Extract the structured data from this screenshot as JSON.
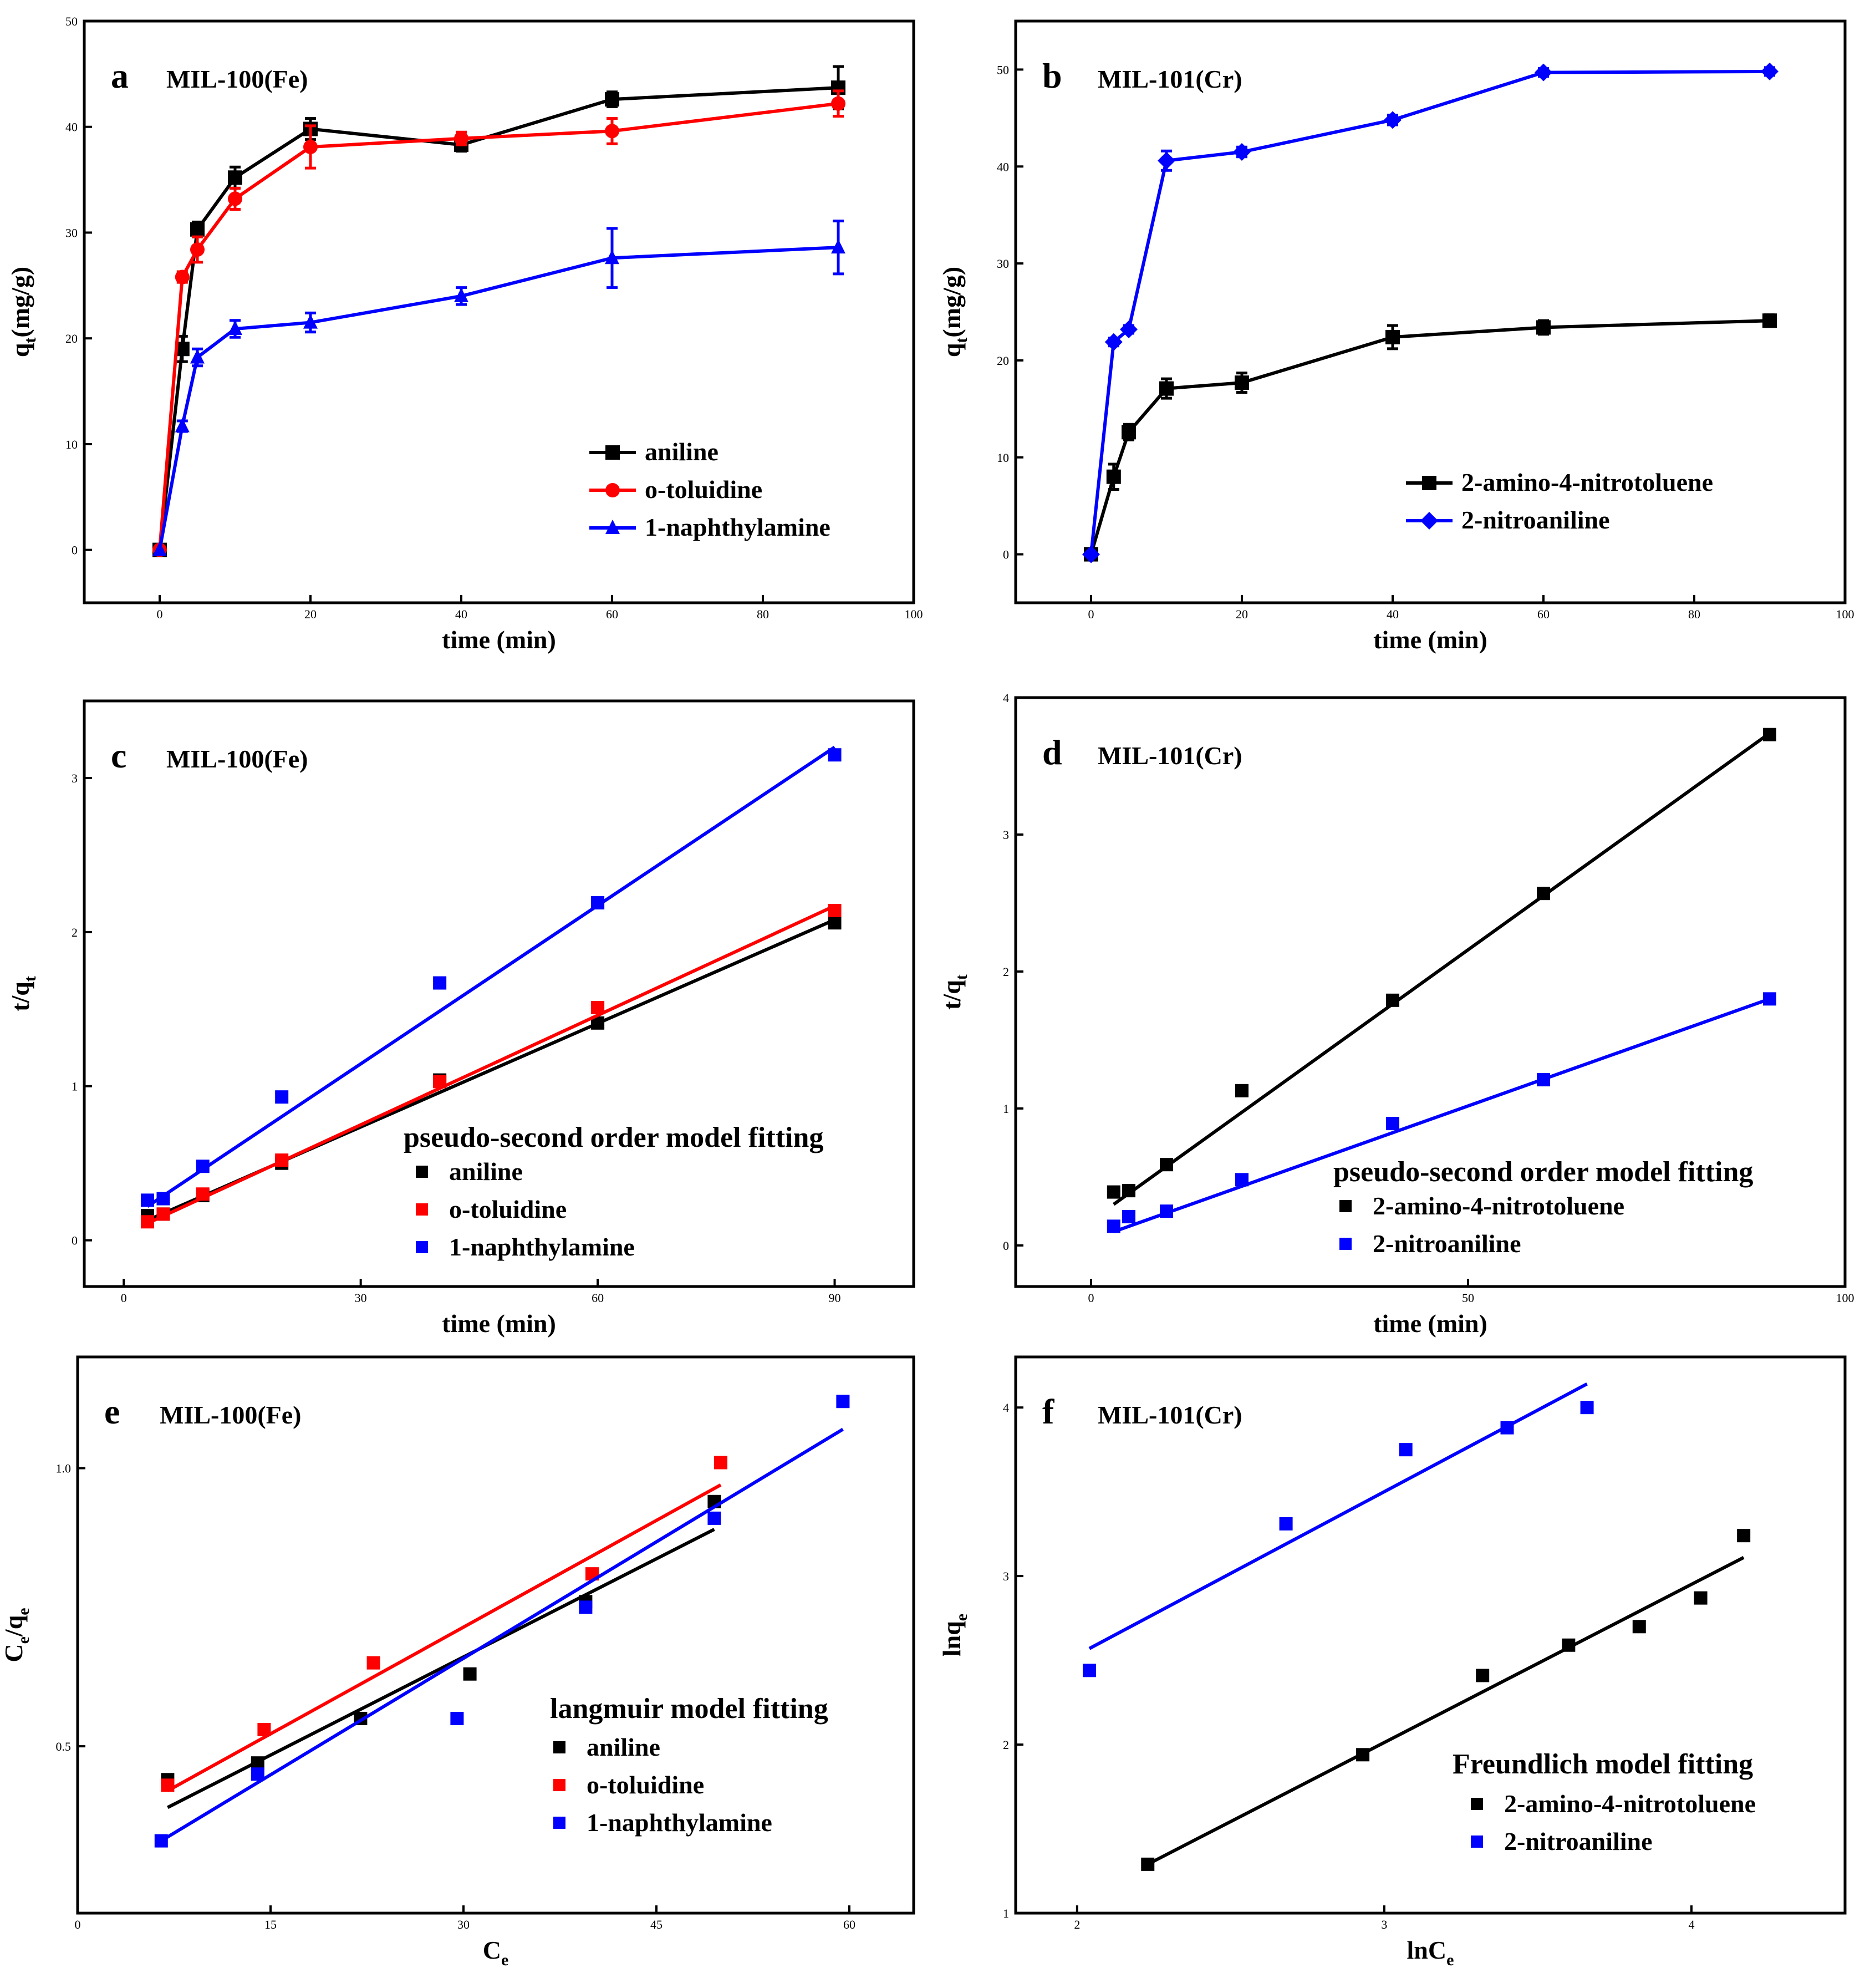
{
  "colors": {
    "black": "#000000",
    "red": "#ff0000",
    "blue": "#0000ff"
  },
  "chart_data": [
    {
      "id": "a",
      "type": "line",
      "panel_label": "a",
      "title": "MIL-100(Fe)",
      "xlabel": "time (min)",
      "ylabel_main": "q",
      "ylabel_sub": "t",
      "ylabel_rest": "(mg/g)",
      "xlim": [
        -10,
        100
      ],
      "ylim": [
        -5,
        50
      ],
      "xticks": [
        0,
        20,
        40,
        60,
        80,
        100
      ],
      "yticks": [
        0,
        10,
        20,
        30,
        40,
        50
      ],
      "legend_title": "",
      "series": [
        {
          "name": "aniline",
          "color": "#000000",
          "marker": "square",
          "x": [
            0,
            3,
            5,
            10,
            20,
            40,
            60,
            90
          ],
          "y": [
            0,
            19,
            30.3,
            35.2,
            39.8,
            38.3,
            42.6,
            43.7
          ],
          "err": [
            0,
            1.2,
            0.7,
            1.0,
            1.0,
            0.6,
            0.7,
            2.0
          ]
        },
        {
          "name": "o-toluidine",
          "color": "#ff0000",
          "marker": "circle",
          "x": [
            0,
            3,
            5,
            10,
            20,
            40,
            60,
            90
          ],
          "y": [
            0,
            25.8,
            28.4,
            33.2,
            38.1,
            38.9,
            39.6,
            42.2
          ],
          "err": [
            0,
            0.5,
            1.2,
            1.0,
            2.0,
            0.6,
            1.2,
            1.2
          ]
        },
        {
          "name": "1-naphthylamine",
          "color": "#0000ff",
          "marker": "triangle",
          "x": [
            0,
            3,
            5,
            10,
            20,
            40,
            60,
            90
          ],
          "y": [
            0,
            11.7,
            18.2,
            20.9,
            21.5,
            24.0,
            27.6,
            28.6
          ],
          "err": [
            0,
            0.5,
            0.8,
            0.8,
            0.9,
            0.8,
            2.8,
            2.5
          ]
        }
      ]
    },
    {
      "id": "b",
      "type": "line",
      "panel_label": "b",
      "title": "MIL-101(Cr)",
      "xlabel": "time (min)",
      "ylabel_main": "q",
      "ylabel_sub": "t",
      "ylabel_rest": "(mg/g)",
      "xlim": [
        -10,
        100
      ],
      "ylim": [
        -5,
        55
      ],
      "xticks": [
        0,
        20,
        40,
        60,
        80,
        100
      ],
      "yticks": [
        0,
        10,
        20,
        30,
        40,
        50
      ],
      "legend_title": "",
      "series": [
        {
          "name": "2-amino-4-nitrotoluene",
          "color": "#000000",
          "marker": "square",
          "x": [
            0,
            3,
            5,
            10,
            20,
            40,
            60,
            90
          ],
          "y": [
            0,
            8,
            12.6,
            17.1,
            17.7,
            22.4,
            23.4,
            24.1
          ],
          "err": [
            0,
            1.3,
            0.8,
            1.0,
            1.0,
            1.2,
            0.7,
            0.6
          ]
        },
        {
          "name": "2-nitroaniline",
          "color": "#0000ff",
          "marker": "diamond",
          "x": [
            0,
            3,
            5,
            10,
            20,
            40,
            60,
            90
          ],
          "y": [
            0,
            21.9,
            23.2,
            40.6,
            41.5,
            44.8,
            49.7,
            49.8
          ],
          "err": [
            0,
            0.4,
            0.4,
            1.0,
            0.5,
            0.5,
            0.4,
            0.4
          ]
        }
      ]
    },
    {
      "id": "c",
      "type": "scatter",
      "panel_label": "c",
      "title": "MIL-100(Fe)",
      "xlabel": "time (min)",
      "ylabel_main": "t/q",
      "ylabel_sub": "t",
      "ylabel_rest": "",
      "xlim": [
        -5,
        100
      ],
      "ylim": [
        -0.3,
        3.5
      ],
      "xticks": [
        0,
        30,
        60,
        90
      ],
      "yticks": [
        0,
        1,
        2,
        3
      ],
      "legend_title": "pseudo-second order model fitting",
      "series": [
        {
          "name": "aniline",
          "color": "#000000",
          "x": [
            3,
            5,
            10,
            20,
            40,
            60,
            90
          ],
          "y": [
            0.16,
            0.17,
            0.29,
            0.5,
            1.04,
            1.41,
            2.06
          ],
          "fit": [
            [
              3,
              0.13
            ],
            [
              90,
              2.08
            ]
          ]
        },
        {
          "name": "o-toluidine",
          "color": "#ff0000",
          "x": [
            3,
            5,
            10,
            20,
            40,
            60,
            90
          ],
          "y": [
            0.12,
            0.17,
            0.3,
            0.52,
            1.03,
            1.51,
            2.14
          ],
          "fit": [
            [
              3,
              0.11
            ],
            [
              90,
              2.17
            ]
          ]
        },
        {
          "name": "1-naphthylamine",
          "color": "#0000ff",
          "x": [
            3,
            5,
            10,
            20,
            40,
            60,
            90
          ],
          "y": [
            0.26,
            0.27,
            0.48,
            0.93,
            1.67,
            2.19,
            3.15
          ],
          "fit": [
            [
              3,
              0.22
            ],
            [
              90,
              3.2
            ]
          ]
        }
      ]
    },
    {
      "id": "d",
      "type": "scatter",
      "panel_label": "d",
      "title": "MIL-101(Cr)",
      "xlabel": "time (min)",
      "ylabel_main": "t/q",
      "ylabel_sub": "t",
      "ylabel_rest": "",
      "xlim": [
        -10,
        100
      ],
      "ylim": [
        -0.3,
        4
      ],
      "xticks": [
        0,
        50,
        100
      ],
      "yticks": [
        0,
        1,
        2,
        3,
        4
      ],
      "legend_title": "pseudo-second order model fitting",
      "series": [
        {
          "name": "2-amino-4-nitrotoluene",
          "color": "#000000",
          "x": [
            3,
            5,
            10,
            20,
            40,
            60,
            90
          ],
          "y": [
            0.39,
            0.4,
            0.59,
            1.13,
            1.79,
            2.57,
            3.73
          ],
          "fit": [
            [
              3,
              0.3
            ],
            [
              90,
              3.74
            ]
          ]
        },
        {
          "name": "2-nitroaniline",
          "color": "#0000ff",
          "x": [
            3,
            5,
            10,
            20,
            40,
            60,
            90
          ],
          "y": [
            0.14,
            0.21,
            0.25,
            0.48,
            0.89,
            1.21,
            1.8
          ],
          "fit": [
            [
              3,
              0.1
            ],
            [
              90,
              1.8
            ]
          ]
        }
      ]
    },
    {
      "id": "e",
      "type": "scatter",
      "panel_label": "e",
      "title": "MIL-100(Fe)",
      "xlabel_main": "C",
      "xlabel_sub": "e",
      "ylabel_main": "C",
      "ylabel_sub": "e",
      "ylabel_rest": "/q",
      "ylabel_sub2": "e",
      "xlim": [
        0,
        65
      ],
      "ylim": [
        0.2,
        1.2
      ],
      "xticks": [
        0,
        15,
        30,
        45,
        60
      ],
      "yticks": [
        0.5,
        1.0
      ],
      "ytick_labels": [
        "0.5",
        "1.0"
      ],
      "legend_title": "langmuir model fitting",
      "series": [
        {
          "name": "aniline",
          "color": "#000000",
          "x": [
            7,
            14,
            22,
            30.5,
            39.5,
            49.5
          ],
          "y": [
            0.44,
            0.47,
            0.55,
            0.63,
            0.76,
            0.94
          ],
          "fit": [
            [
              7,
              0.39
            ],
            [
              49.5,
              0.89
            ]
          ]
        },
        {
          "name": "o-toluidine",
          "color": "#ff0000",
          "x": [
            7,
            14.5,
            23,
            40,
            50
          ],
          "y": [
            0.43,
            0.53,
            0.65,
            0.81,
            1.01
          ],
          "fit": [
            [
              7,
              0.42
            ],
            [
              50,
              0.97
            ]
          ]
        },
        {
          "name": "1-naphthylamine",
          "color": "#0000ff",
          "x": [
            6.5,
            14,
            29.5,
            39.5,
            49.5,
            59.5
          ],
          "y": [
            0.33,
            0.45,
            0.55,
            0.75,
            0.91,
            1.12
          ],
          "fit": [
            [
              6.5,
              0.33
            ],
            [
              59.5,
              1.07
            ]
          ]
        }
      ]
    },
    {
      "id": "f",
      "type": "scatter",
      "panel_label": "f",
      "title": "MIL-101(Cr)",
      "xlabel_main": "lnC",
      "xlabel_sub": "e",
      "ylabel_main": "lnq",
      "ylabel_sub": "e",
      "ylabel_rest": "",
      "xlim": [
        1.8,
        4.5
      ],
      "ylim": [
        1,
        4.3
      ],
      "xticks": [
        2,
        3,
        4
      ],
      "yticks": [
        1,
        2,
        3,
        4
      ],
      "legend_title": "Freundlich model fitting",
      "series": [
        {
          "name": "2-amino-4-nitrotoluene",
          "color": "#000000",
          "x": [
            2.23,
            2.93,
            3.32,
            3.6,
            3.83,
            4.03,
            4.17
          ],
          "y": [
            1.29,
            1.94,
            2.41,
            2.59,
            2.7,
            2.87,
            3.24
          ],
          "fit": [
            [
              2.23,
              1.29
            ],
            [
              4.17,
              3.11
            ]
          ]
        },
        {
          "name": "2-nitroaniline",
          "color": "#0000ff",
          "x": [
            2.04,
            2.68,
            3.07,
            3.4,
            3.66
          ],
          "y": [
            2.44,
            3.31,
            3.75,
            3.88,
            4.0
          ],
          "fit": [
            [
              2.04,
              2.57
            ],
            [
              3.66,
              4.14
            ]
          ]
        }
      ]
    }
  ]
}
